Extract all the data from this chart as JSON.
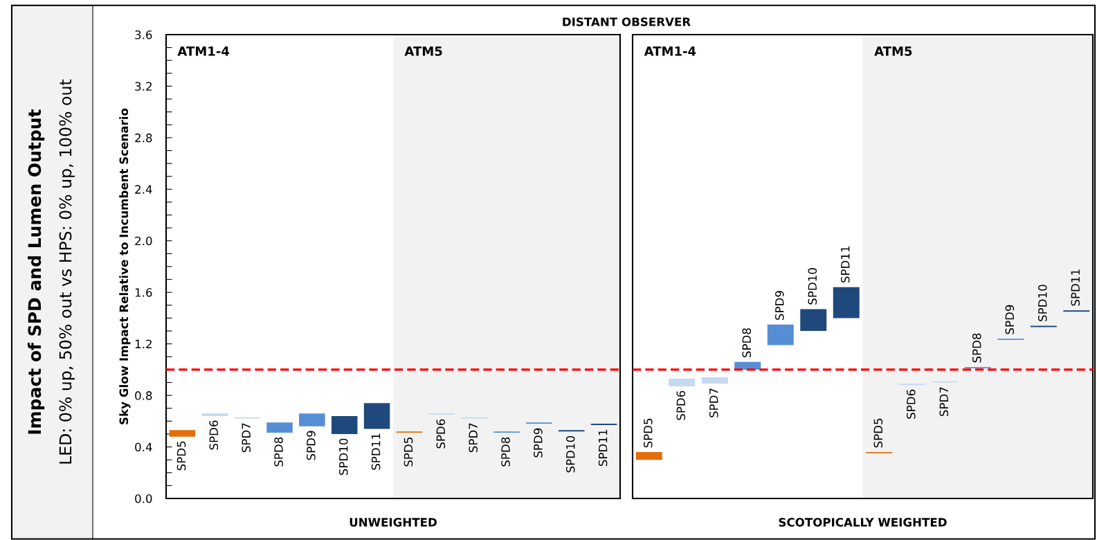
{
  "chart_data": [
    {
      "type": "other",
      "title": "Impact of SPD and Lumen Output",
      "subtitle": "LED: 0% up, 50% out vs HPS: 0% up, 100% out"
    },
    {
      "type": "bar",
      "title": "DISTANT OBSERVER",
      "xlabel": "UNWEIGHTED",
      "ylabel": "Sky Glow Impact Relative to Incumbent Scenario",
      "categories": [
        "SPD5",
        "SPD6",
        "SPD7",
        "SPD8",
        "SPD9",
        "SPD10",
        "SPD11",
        "SPD5",
        "SPD6",
        "SPD7",
        "SPD8",
        "SPD9",
        "SPD10",
        "SPD11"
      ],
      "base": [
        0.48,
        0.64,
        0.62,
        0.51,
        0.56,
        0.5,
        0.54,
        0.51,
        0.65,
        0.62,
        0.51,
        0.58,
        0.52,
        0.57
      ],
      "values": [
        0.05,
        0.02,
        0.01,
        0.08,
        0.1,
        0.14,
        0.2,
        0.01,
        0.01,
        0.01,
        0.01,
        0.01,
        0.01,
        0.01
      ],
      "colors": [
        "#e46c0a",
        "#c5d9f1",
        "#c5d9f1",
        "#558ed5",
        "#558ed5",
        "#1f497d",
        "#1f497d",
        "#e46c0a",
        "#c5d9f1",
        "#c5d9f1",
        "#558ed5",
        "#558ed5",
        "#1f497d",
        "#1f497d"
      ],
      "ylim": [
        0,
        3.6
      ],
      "yticks": [
        {
          "value": 0,
          "label": "0.0"
        },
        {
          "value": 0.1,
          "label": null
        },
        {
          "value": 0.2,
          "label": null
        },
        {
          "value": 0.3,
          "label": null
        },
        {
          "value": 0.4,
          "label": "0.4"
        },
        {
          "value": 0.5,
          "label": null
        },
        {
          "value": 0.6,
          "label": null
        },
        {
          "value": 0.7,
          "label": null
        },
        {
          "value": 0.8,
          "label": "0.8"
        },
        {
          "value": 0.9,
          "label": null
        },
        {
          "value": 1.0,
          "label": null
        },
        {
          "value": 1.1,
          "label": null
        },
        {
          "value": 1.2,
          "label": "1.2"
        },
        {
          "value": 1.3,
          "label": null
        },
        {
          "value": 1.4,
          "label": null
        },
        {
          "value": 1.5,
          "label": null
        },
        {
          "value": 1.6,
          "label": "1.6"
        },
        {
          "value": 1.7,
          "label": null
        },
        {
          "value": 1.8,
          "label": null
        },
        {
          "value": 1.9,
          "label": null
        },
        {
          "value": 2.0,
          "label": "2.0"
        },
        {
          "value": 2.1,
          "label": null
        },
        {
          "value": 2.2,
          "label": null
        },
        {
          "value": 2.3,
          "label": null
        },
        {
          "value": 2.4,
          "label": "2.4"
        },
        {
          "value": 2.5,
          "label": null
        },
        {
          "value": 2.6,
          "label": null
        },
        {
          "value": 2.7,
          "label": null
        },
        {
          "value": 2.8,
          "label": "2.8"
        },
        {
          "value": 2.9,
          "label": null
        },
        {
          "value": 3.0,
          "label": null
        },
        {
          "value": 3.1,
          "label": null
        },
        {
          "value": 3.2,
          "label": "3.2"
        },
        {
          "value": 3.3,
          "label": null
        },
        {
          "value": 3.4,
          "label": null
        },
        {
          "value": 3.5,
          "label": null
        },
        {
          "value": 3.6,
          "label": "3.6"
        }
      ],
      "tick_labels": "y",
      "ref_lines": [
        {
          "axis": "y",
          "value": 1.0,
          "color": "#ff0000",
          "line_style": "dashed"
        }
      ],
      "annotations": [
        "ATM1-4",
        "ATM5"
      ]
    },
    {
      "type": "bar",
      "xlabel": "SCOTOPICALLY WEIGHTED",
      "categories": [
        "SPD5",
        "SPD6",
        "SPD7",
        "SPD8",
        "SPD9",
        "SPD10",
        "SPD11",
        "SPD5",
        "SPD6",
        "SPD7",
        "SPD8",
        "SPD9",
        "SPD10",
        "SPD11"
      ],
      "base": [
        0.3,
        0.87,
        0.89,
        1.0,
        1.19,
        1.3,
        1.4,
        0.35,
        0.88,
        0.9,
        1.01,
        1.23,
        1.33,
        1.45
      ],
      "values": [
        0.06,
        0.06,
        0.05,
        0.06,
        0.16,
        0.17,
        0.24,
        0.01,
        0.01,
        0.01,
        0.01,
        0.01,
        0.01,
        0.01
      ],
      "colors": [
        "#e46c0a",
        "#c5d9f1",
        "#c5d9f1",
        "#558ed5",
        "#558ed5",
        "#1f497d",
        "#1f497d",
        "#e46c0a",
        "#c5d9f1",
        "#c5d9f1",
        "#558ed5",
        "#558ed5",
        "#1f497d",
        "#1f497d"
      ],
      "ylim": [
        0,
        3.6
      ],
      "tick_labels": false,
      "ref_lines": [
        {
          "axis": "y",
          "value": 1.0,
          "color": "#ff0000",
          "line_style": "dashed"
        }
      ],
      "annotations": [
        "ATM1-4",
        "ATM5"
      ]
    }
  ]
}
